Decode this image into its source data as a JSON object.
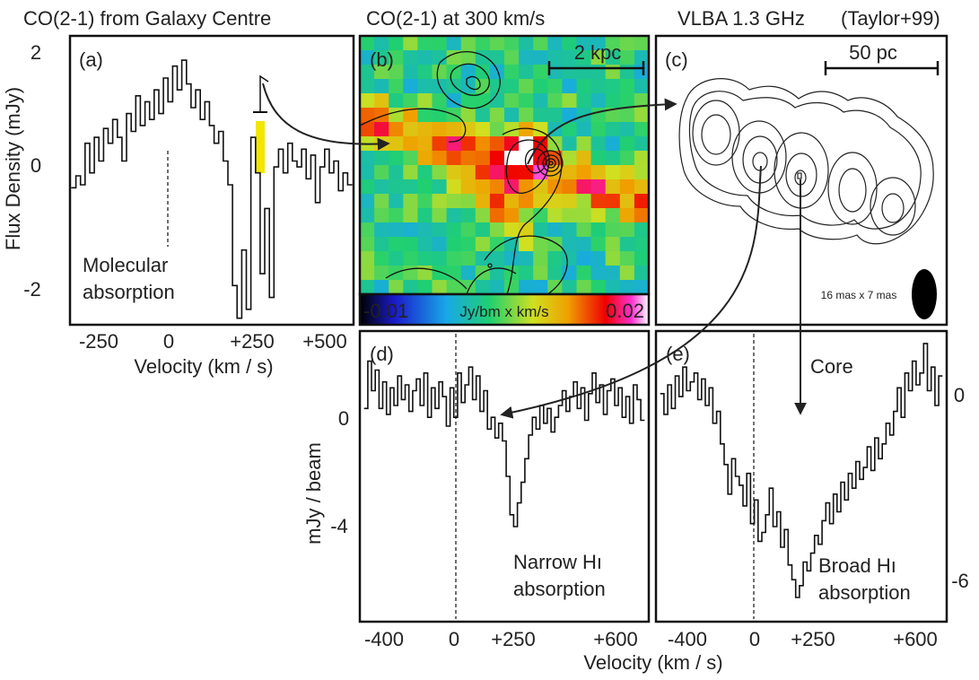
{
  "titles": {
    "a": "CO(2-1) from Galaxy Centre",
    "b": "CO(2-1) at 300 km/s",
    "c": "VLBA 1.3 GHz",
    "c_ref": "(Taylor+99)"
  },
  "panel_letters": {
    "a": "(a)",
    "b": "(b)",
    "c": "(c)",
    "d": "(d)",
    "e": "(e)"
  },
  "scalebars": {
    "b": "2 kpc",
    "c": "50 pc"
  },
  "beam_label": "16 mas x 7 mas",
  "core_label": "Core",
  "colorbar": {
    "min": "-0.01",
    "unit": "Jy/bm x km/s",
    "max": "0.02"
  },
  "colors": {
    "blue": "#1515e6",
    "red": "#e01818",
    "black": "#222222",
    "highlight": "#f2e600"
  },
  "chart_data": [
    {
      "id": "a",
      "type": "line",
      "ylabel": "Flux Density (mJy)",
      "xlabel": "Velocity (km / s)",
      "yticks": [
        "2",
        "0",
        "-2"
      ],
      "xticks": [
        {
          "label": "-250",
          "color": "blue"
        },
        {
          "label": "0",
          "color": "black"
        },
        {
          "label": "+250",
          "color": "red"
        },
        {
          "label": "+500",
          "color": "red"
        }
      ],
      "annotation": "Molecular absorption",
      "annotation_lines": [
        "Molecular",
        "absorption"
      ],
      "xlim": [
        -350,
        550
      ],
      "ylim": [
        -2.4,
        2.35
      ],
      "x": [
        -350,
        -335,
        -320,
        -305,
        -290,
        -275,
        -260,
        -245,
        -230,
        -215,
        -200,
        -185,
        -170,
        -155,
        -140,
        -125,
        -110,
        -95,
        -80,
        -65,
        -50,
        -35,
        -20,
        -5,
        10,
        25,
        40,
        55,
        70,
        85,
        100,
        115,
        130,
        145,
        160,
        175,
        190,
        205,
        220,
        235,
        250,
        265,
        280,
        295,
        310,
        325,
        340,
        355,
        370,
        385,
        400,
        415,
        430,
        445,
        460,
        475,
        490,
        505,
        520,
        535,
        550
      ],
      "y": [
        -0.15,
        0.05,
        -0.1,
        0.6,
        0.1,
        0.7,
        0.3,
        0.85,
        0.6,
        1.0,
        0.7,
        0.3,
        1.1,
        0.8,
        1.4,
        0.9,
        1.3,
        1.0,
        1.5,
        1.1,
        1.7,
        1.3,
        1.9,
        1.5,
        2.0,
        1.6,
        1.2,
        1.5,
        1.0,
        1.3,
        0.9,
        0.6,
        0.8,
        0.3,
        -0.1,
        -1.8,
        -2.35,
        -1.2,
        -2.2,
        0.7,
        0.1,
        -1.6,
        -0.5,
        -2.0,
        0.2,
        0.5,
        0.1,
        0.6,
        0.3,
        0.2,
        0.5,
        0.0,
        0.4,
        -0.4,
        0.2,
        0.5,
        0.1,
        0.3,
        -0.2,
        0.1,
        -0.1
      ]
    },
    {
      "id": "d",
      "type": "line",
      "ylabel": "mJy / beam",
      "xlabel": "Velocity (km / s)",
      "yticks": [
        "0",
        "-4"
      ],
      "xticks": [
        {
          "label": "-400",
          "color": "blue"
        },
        {
          "label": "0",
          "color": "black"
        },
        {
          "label": "+250",
          "color": "red"
        },
        {
          "label": "+600",
          "color": "red"
        }
      ],
      "annotation_lines": [
        "Narrow Hı",
        "absorption"
      ],
      "xlim": [
        -430,
        700
      ],
      "ylim": [
        -7.4,
        2.2
      ],
      "x": [
        -420,
        -405,
        -390,
        -375,
        -360,
        -345,
        -330,
        -315,
        -300,
        -285,
        -270,
        -255,
        -240,
        -225,
        -210,
        -195,
        -180,
        -165,
        -150,
        -135,
        -120,
        -105,
        -90,
        -75,
        -60,
        -45,
        -30,
        -15,
        0,
        15,
        30,
        45,
        60,
        75,
        90,
        105,
        120,
        135,
        150,
        165,
        180,
        195,
        210,
        225,
        240,
        255,
        270,
        285,
        300,
        315,
        330,
        345,
        360,
        375,
        390,
        405,
        420,
        435,
        450,
        465,
        480,
        495,
        510,
        525,
        540,
        555,
        570,
        585,
        600,
        615,
        630,
        645,
        660,
        675,
        690
      ],
      "y": [
        -0.3,
        1.3,
        0.3,
        1.0,
        -0.3,
        0.6,
        -0.5,
        0.4,
        -0.2,
        0.8,
        0.0,
        0.5,
        -0.4,
        0.3,
        0.7,
        -0.2,
        0.9,
        -0.6,
        0.4,
        -0.3,
        0.6,
        0.1,
        -0.9,
        0.4,
        -0.6,
        0.9,
        -0.1,
        0.5,
        1.1,
        0.0,
        0.8,
        -0.4,
        0.3,
        -1.0,
        -0.6,
        -1.3,
        -0.8,
        -1.4,
        -2.6,
        -3.9,
        -4.3,
        -3.5,
        -2.8,
        -2.0,
        -1.2,
        -0.6,
        -1.0,
        -0.2,
        -0.8,
        -0.3,
        -1.1,
        -0.6,
        -0.2,
        0.3,
        -0.4,
        0.1,
        0.6,
        -0.3,
        0.4,
        -0.7,
        0.2,
        0.9,
        -0.1,
        0.5,
        -0.5,
        0.3,
        0.7,
        -0.2,
        0.4,
        -0.6,
        0.1,
        -0.8,
        0.5,
        0.0,
        -0.7
      ]
    },
    {
      "id": "e",
      "type": "line",
      "yticks": [
        "0",
        "-6"
      ],
      "xticks": [
        {
          "label": "-400",
          "color": "blue"
        },
        {
          "label": "0",
          "color": "black"
        },
        {
          "label": "+250",
          "color": "red"
        },
        {
          "label": "+600",
          "color": "red"
        }
      ],
      "annotation_lines": [
        "Broad Hı",
        "absorption"
      ],
      "xlim": [
        -430,
        700
      ],
      "ylim": [
        -7.4,
        2.2
      ],
      "x": [
        -420,
        -405,
        -390,
        -375,
        -360,
        -345,
        -330,
        -315,
        -300,
        -285,
        -270,
        -255,
        -240,
        -225,
        -210,
        -195,
        -180,
        -165,
        -150,
        -135,
        -120,
        -105,
        -90,
        -75,
        -60,
        -45,
        -30,
        -15,
        0,
        15,
        30,
        45,
        60,
        75,
        90,
        105,
        120,
        135,
        150,
        165,
        180,
        195,
        210,
        225,
        240,
        255,
        270,
        285,
        300,
        315,
        330,
        345,
        360,
        375,
        390,
        405,
        420,
        435,
        450,
        465,
        480,
        495,
        510,
        525,
        540,
        555,
        570,
        585,
        600,
        615,
        630,
        645,
        660,
        675,
        690
      ],
      "y": [
        0.2,
        -0.5,
        0.5,
        -0.3,
        0.8,
        0.1,
        1.1,
        0.3,
        0.6,
        0.9,
        0.0,
        0.7,
        -0.2,
        0.4,
        -0.8,
        -0.4,
        -1.5,
        -2.2,
        -3.2,
        -2.0,
        -2.6,
        -2.9,
        -3.6,
        -2.5,
        -4.2,
        -3.4,
        -4.8,
        -4.5,
        -3.9,
        -3.0,
        -4.3,
        -3.8,
        -5.0,
        -4.4,
        -5.6,
        -6.1,
        -6.7,
        -6.3,
        -5.5,
        -5.8,
        -5.2,
        -4.6,
        -4.9,
        -4.1,
        -3.5,
        -4.2,
        -3.2,
        -3.8,
        -2.8,
        -3.4,
        -2.5,
        -3.0,
        -2.1,
        -2.7,
        -2.3,
        -1.6,
        -2.4,
        -1.3,
        -2.0,
        -1.5,
        -0.8,
        -1.2,
        -0.4,
        0.4,
        -0.6,
        0.9,
        0.3,
        1.3,
        0.5,
        0.9,
        1.9,
        0.3,
        1.1,
        -0.2,
        0.8
      ]
    }
  ]
}
